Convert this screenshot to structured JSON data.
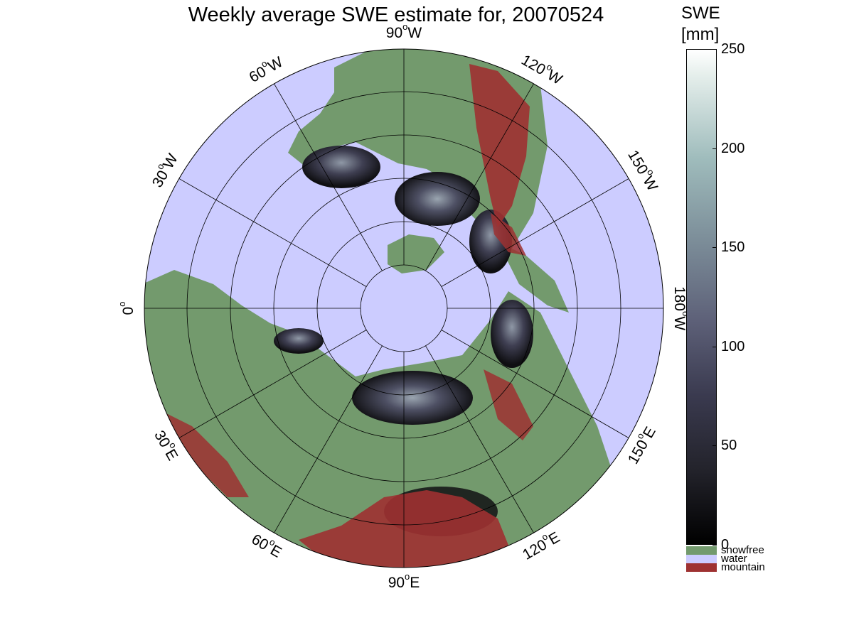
{
  "title": "Weekly average SWE estimate for, 20070524",
  "colorbar": {
    "title_line1": "SWE",
    "title_line2": "[mm]",
    "ticks": [
      {
        "value": 0,
        "label": "0"
      },
      {
        "value": 50,
        "label": "50"
      },
      {
        "value": 100,
        "label": "100"
      },
      {
        "value": 150,
        "label": "150"
      },
      {
        "value": 200,
        "label": "200"
      },
      {
        "value": 250,
        "label": "250"
      }
    ],
    "range": [
      0,
      250
    ],
    "categories": [
      {
        "label": "snowfree",
        "color": "#739a6d"
      },
      {
        "label": "water",
        "color": "#ccccff"
      },
      {
        "label": "mountain",
        "color": "#9e3131"
      }
    ]
  },
  "map": {
    "projection": "north polar stereographic",
    "ocean_color": "#ccccff",
    "land_color": "#739a6d",
    "mountain_color": "#9e3131",
    "longitude_labels": [
      {
        "deg": 90,
        "text": "90",
        "suffix": "W"
      },
      {
        "deg": 120,
        "text": "120",
        "suffix": "W"
      },
      {
        "deg": 150,
        "text": "150",
        "suffix": "W"
      },
      {
        "deg": 180,
        "text": "180",
        "suffix": "W"
      },
      {
        "deg": 210,
        "text": "150",
        "suffix": "E"
      },
      {
        "deg": 240,
        "text": "120",
        "suffix": "E"
      },
      {
        "deg": 270,
        "text": "90",
        "suffix": "E"
      },
      {
        "deg": 300,
        "text": "60",
        "suffix": "E"
      },
      {
        "deg": 330,
        "text": "30",
        "suffix": "E"
      },
      {
        "deg": 0,
        "text": "0",
        "suffix": ""
      },
      {
        "deg": 30,
        "text": "30",
        "suffix": "W"
      },
      {
        "deg": 60,
        "text": "60",
        "suffix": "W"
      }
    ]
  }
}
